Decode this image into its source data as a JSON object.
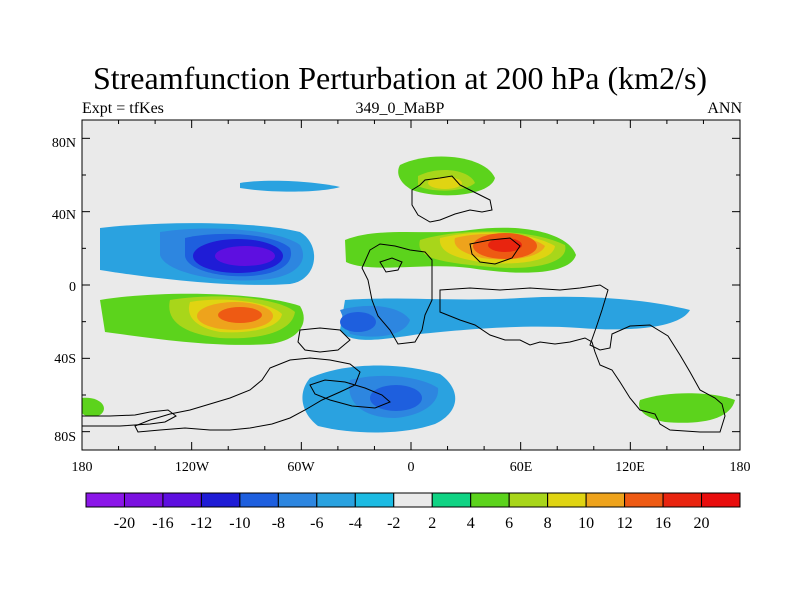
{
  "title": "Streamfunction Perturbation at 200 hPa (km2/s)",
  "left_string": "Expt = tfKes",
  "center_string": "349_0_MaBP",
  "right_string": "ANN",
  "lat_labels": [
    "80N",
    "40N",
    "0",
    "40S",
    "80S"
  ],
  "lon_labels": [
    "180",
    "120W",
    "60W",
    "0",
    "60E",
    "120E",
    "180"
  ],
  "colorbar": {
    "labels": [
      "-20",
      "-16",
      "-12",
      "-10",
      "-8",
      "-6",
      "-4",
      "-2",
      "2",
      "4",
      "6",
      "8",
      "10",
      "12",
      "16",
      "20"
    ],
    "colors": [
      "#8b16e8",
      "#7b11e0",
      "#5e0fe0",
      "#1f1cd6",
      "#1e5fde",
      "#2d86e0",
      "#2aa2e0",
      "#1cbbe3",
      "#eaeaea",
      "#10d384",
      "#5cd31c",
      "#a8d61a",
      "#e0d412",
      "#eea31c",
      "#ee5a13",
      "#e8240f",
      "#e80d0d"
    ]
  },
  "chart_data": {
    "type": "heatmap",
    "title": "Streamfunction Perturbation at 200 hPa (km2/s)",
    "units": "km2/s",
    "level": "200 hPa",
    "projection": "cylindrical equidistant",
    "xlim": [
      -180,
      180
    ],
    "ylim": [
      -90,
      90
    ],
    "contour_levels": [
      -20,
      -16,
      -12,
      -10,
      -8,
      -6,
      -4,
      -2,
      2,
      4,
      6,
      8,
      10,
      12,
      16,
      20
    ],
    "features": [
      {
        "name": "negative center N Pacific",
        "lon": -95,
        "lat": 18,
        "value": -14
      },
      {
        "name": "negative band N Pacific",
        "lon": -130,
        "lat": 25,
        "value": -6
      },
      {
        "name": "positive center Middle East",
        "lon": 45,
        "lat": 22,
        "value": 16
      },
      {
        "name": "positive center N Europe",
        "lon": 20,
        "lat": 55,
        "value": 6
      },
      {
        "name": "positive center S Pacific",
        "lon": -90,
        "lat": -15,
        "value": 10
      },
      {
        "name": "negative center S Atlantic",
        "lon": -10,
        "lat": -60,
        "value": -8
      },
      {
        "name": "negative band S Indian Ocean",
        "lon": 70,
        "lat": -20,
        "value": -5
      },
      {
        "name": "positive center S Pacific high lat",
        "lon": 155,
        "lat": -65,
        "value": 5
      },
      {
        "name": "negative band N mid-latitudes",
        "lon": -150,
        "lat": 60,
        "value": -4
      }
    ]
  }
}
